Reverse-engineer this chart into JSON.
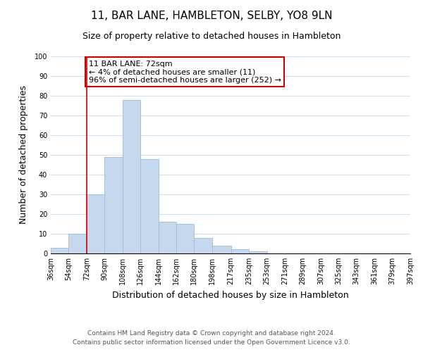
{
  "title": "11, BAR LANE, HAMBLETON, SELBY, YO8 9LN",
  "subtitle": "Size of property relative to detached houses in Hambleton",
  "xlabel": "Distribution of detached houses by size in Hambleton",
  "ylabel": "Number of detached properties",
  "bar_color": "#c5d8ed",
  "bar_edge_color": "#a0bcd8",
  "bin_edges": [
    36,
    54,
    72,
    90,
    108,
    126,
    144,
    162,
    180,
    198,
    217,
    235,
    253,
    271,
    289,
    307,
    325,
    343,
    361,
    379,
    397
  ],
  "bin_labels": [
    "36sqm",
    "54sqm",
    "72sqm",
    "90sqm",
    "108sqm",
    "126sqm",
    "144sqm",
    "162sqm",
    "180sqm",
    "198sqm",
    "217sqm",
    "235sqm",
    "253sqm",
    "271sqm",
    "289sqm",
    "307sqm",
    "325sqm",
    "343sqm",
    "361sqm",
    "379sqm",
    "397sqm"
  ],
  "counts": [
    3,
    10,
    30,
    49,
    78,
    48,
    16,
    15,
    8,
    4,
    2,
    1,
    0,
    0,
    0,
    0,
    0,
    0,
    0,
    0
  ],
  "ylim": [
    0,
    100
  ],
  "red_line_x": 72,
  "annotation_text": "11 BAR LANE: 72sqm\n← 4% of detached houses are smaller (11)\n96% of semi-detached houses are larger (252) →",
  "annotation_box_color": "#ffffff",
  "annotation_box_edge_color": "#cc0000",
  "footer_line1": "Contains HM Land Registry data © Crown copyright and database right 2024.",
  "footer_line2": "Contains public sector information licensed under the Open Government Licence v3.0.",
  "background_color": "#ffffff",
  "grid_color": "#d0dce8",
  "title_fontsize": 11,
  "subtitle_fontsize": 9,
  "axis_label_fontsize": 9,
  "tick_fontsize": 7,
  "annotation_fontsize": 8,
  "footer_fontsize": 6.5
}
